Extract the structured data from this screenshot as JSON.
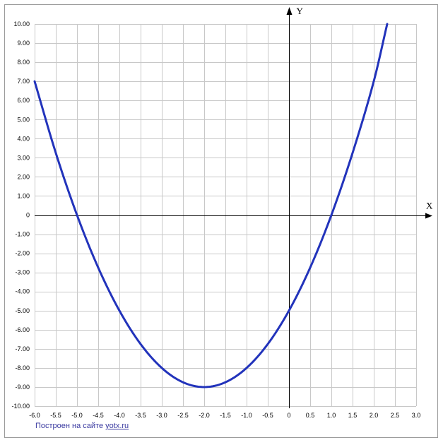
{
  "chart_data": {
    "type": "line",
    "title": "",
    "xlabel": "X",
    "ylabel": "Y",
    "xlim": [
      -6.0,
      3.0
    ],
    "ylim": [
      -10.0,
      10.0
    ],
    "x_tick_step": 0.5,
    "y_tick_step": 1.0,
    "x_tick_labels": [
      "-6.0",
      "-5.5",
      "-5.0",
      "-4.5",
      "-4.0",
      "-3.5",
      "-3.0",
      "-2.5",
      "-2.0",
      "-1.5",
      "-1.0",
      "-0.5",
      "0",
      "0.5",
      "1.0",
      "1.5",
      "2.0",
      "2.5",
      "3.0"
    ],
    "y_tick_labels": [
      "10.00",
      "9.00",
      "8.00",
      "7.00",
      "6.00",
      "5.00",
      "4.00",
      "3.00",
      "2.00",
      "1.00",
      "0",
      "-1.00",
      "-2.00",
      "-3.00",
      "-4.00",
      "-5.00",
      "-6.00",
      "-7.00",
      "-8.00",
      "-9.00",
      "-10.00"
    ],
    "grid": true,
    "series": [
      {
        "color": "#2233bb",
        "x": [
          -6.0,
          -5.5,
          -5.0,
          -4.5,
          -4.0,
          -3.5,
          -3.0,
          -2.5,
          -2.0,
          -1.5,
          -1.0,
          -0.5,
          0.0,
          0.5,
          1.0,
          1.5,
          2.0,
          2.3166
        ],
        "y": [
          7.0,
          3.25,
          0.0,
          -2.75,
          -5.0,
          -6.75,
          -8.0,
          -8.75,
          -9.0,
          -8.75,
          -8.0,
          -6.75,
          -5.0,
          -2.75,
          0.0,
          3.25,
          7.0,
          10.0
        ]
      }
    ]
  },
  "footer": {
    "credit_text": "Построен на сайте ",
    "credit_link": "yotx.ru"
  },
  "colors": {
    "grid": "#c8c8c8",
    "axis": "#000000",
    "curve": "#2233bb",
    "frame": "#9a9a9a",
    "credit": "#3a3aa0"
  }
}
